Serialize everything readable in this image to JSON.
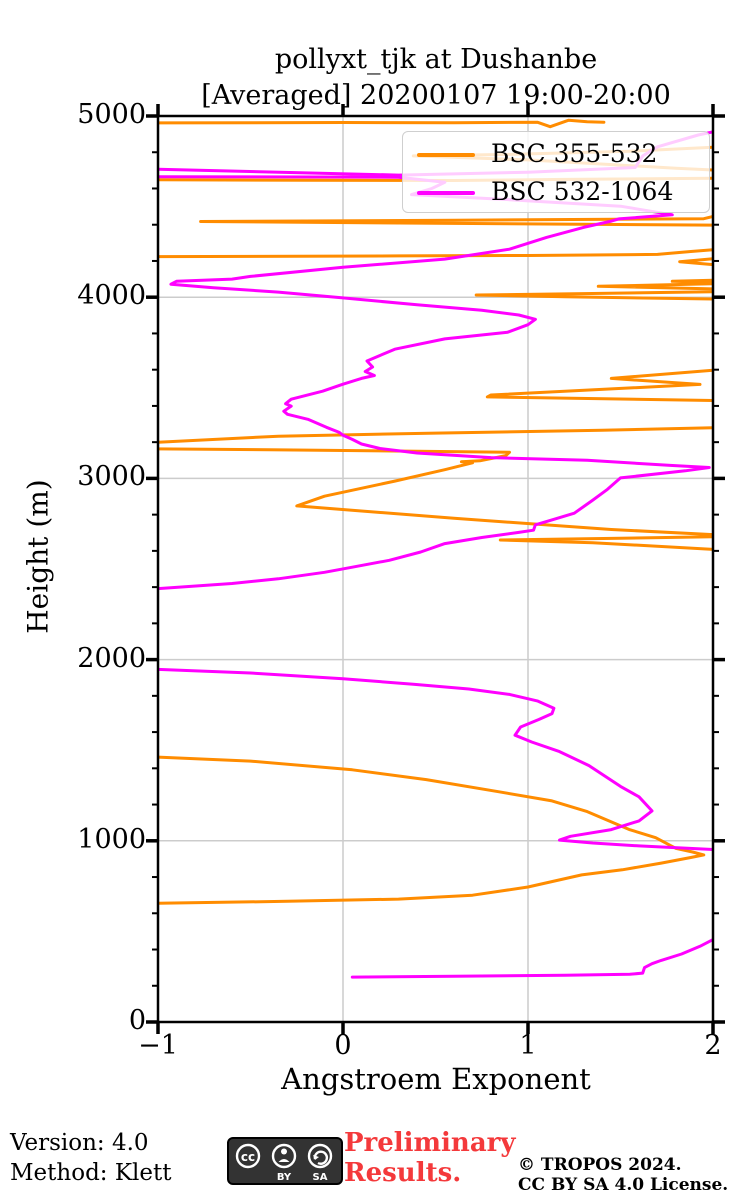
{
  "title": {
    "line1": "pollyxt_tjk at Dushanbe",
    "line2": "[Averaged] 20200107 19:00-20:00"
  },
  "footer": {
    "version": "Version: 4.0",
    "method": "Method: Klett",
    "preliminary_line1": "Preliminary",
    "preliminary_line2": "Results.",
    "preliminary_color": "#f4393b",
    "copyright_line1": "© TROPOS 2024.",
    "copyright_line2": "CC BY SA 4.0 License.",
    "cc_badge": {
      "icons": [
        "cc-icon",
        "by-person-icon",
        "sa-arrow-icon"
      ],
      "labels": [
        "BY",
        "SA"
      ]
    }
  },
  "chart_data": {
    "type": "line",
    "title": "pollyxt_tjk at Dushanbe [Averaged] 20200107 19:00-20:00",
    "xlabel": "Angstroem Exponent",
    "ylabel": "Height (m)",
    "xlim": [
      -1,
      2
    ],
    "ylim": [
      0,
      5000
    ],
    "xticks": [
      -1,
      0,
      1,
      2
    ],
    "yticks": [
      0,
      1000,
      2000,
      3000,
      4000,
      5000
    ],
    "y_minor_step": 200,
    "grid": true,
    "grid_color": "#cccccc",
    "legend_position": "upper right",
    "series": [
      {
        "name": "BSC 355-532",
        "color": "#FF8C00",
        "segments": [
          [
            [
              -1,
              655
            ],
            [
              -0.3,
              666
            ],
            [
              0.3,
              678
            ],
            [
              0.7,
              700
            ],
            [
              1.0,
              745
            ],
            [
              1.29,
              812
            ],
            [
              1.51,
              840
            ],
            [
              1.72,
              877
            ],
            [
              1.88,
              908
            ],
            [
              1.95,
              922
            ],
            [
              1.89,
              938
            ],
            [
              1.8,
              958
            ],
            [
              1.69,
              1017
            ],
            [
              1.55,
              1061
            ],
            [
              1.32,
              1161
            ],
            [
              1.13,
              1220
            ],
            [
              0.84,
              1271
            ],
            [
              0.45,
              1338
            ],
            [
              0.05,
              1392
            ],
            [
              -0.5,
              1440
            ],
            [
              -1,
              1462
            ]
          ],
          [
            [
              2,
              2608
            ],
            [
              1.35,
              2645
            ],
            [
              0.85,
              2660
            ],
            [
              1.5,
              2670
            ],
            [
              2,
              2678
            ]
          ],
          [
            [
              2,
              2690
            ],
            [
              1.45,
              2718
            ],
            [
              0.6,
              2780
            ],
            [
              -0.25,
              2848
            ],
            [
              -0.1,
              2902
            ],
            [
              0.28,
              2985
            ],
            [
              0.55,
              3048
            ],
            [
              0.7,
              3086
            ],
            [
              0.64,
              3092
            ],
            [
              0.74,
              3097
            ],
            [
              0.88,
              3126
            ],
            [
              0.9,
              3144
            ],
            [
              0.4,
              3150
            ],
            [
              -0.4,
              3158
            ],
            [
              -1,
              3163
            ]
          ],
          [
            [
              -1,
              3200
            ],
            [
              -0.35,
              3233
            ],
            [
              0.5,
              3250
            ],
            [
              1.4,
              3266
            ],
            [
              2,
              3279
            ]
          ],
          [
            [
              2,
              3430
            ],
            [
              0.78,
              3450
            ],
            [
              0.8,
              3460
            ],
            [
              1.93,
              3519
            ],
            [
              1.45,
              3552
            ],
            [
              2,
              3597
            ]
          ],
          [
            [
              2,
              3990
            ],
            [
              1.2,
              4002
            ],
            [
              0.72,
              4012
            ],
            [
              1.3,
              4020
            ],
            [
              2,
              4030
            ]
          ],
          [
            [
              2,
              4046
            ],
            [
              1.38,
              4060
            ],
            [
              2,
              4074
            ]
          ],
          [
            [
              2,
              4082
            ],
            [
              1.78,
              4088
            ],
            [
              2,
              4094
            ]
          ],
          [
            [
              -1,
              4224
            ],
            [
              0.3,
              4228
            ],
            [
              1.0,
              4230
            ],
            [
              1.7,
              4236
            ],
            [
              1.88,
              4252
            ],
            [
              2,
              4262
            ]
          ],
          [
            [
              2,
              4212
            ],
            [
              1.82,
              4196
            ],
            [
              2,
              4180
            ]
          ],
          [
            [
              2,
              4398
            ],
            [
              0.5,
              4408
            ],
            [
              -0.77,
              4418
            ],
            [
              0.6,
              4425
            ],
            [
              1.95,
              4433
            ],
            [
              2,
              4446
            ]
          ],
          [
            [
              2,
              4657
            ],
            [
              1.2,
              4650
            ],
            [
              0.6,
              4644
            ],
            [
              -0.2,
              4645
            ],
            [
              -1,
              4648
            ]
          ],
          [
            [
              2,
              4828
            ],
            [
              1.55,
              4806
            ],
            [
              0.9,
              4788
            ],
            [
              0.38,
              4780
            ],
            [
              1.0,
              4758
            ],
            [
              1.8,
              4712
            ],
            [
              2,
              4702
            ]
          ],
          [
            [
              -1,
              4962
            ],
            [
              0,
              4964
            ],
            [
              0.6,
              4963
            ],
            [
              1.05,
              4966
            ],
            [
              1.12,
              4941
            ],
            [
              1.22,
              4977
            ],
            [
              1.32,
              4968
            ],
            [
              1.41,
              4966
            ]
          ]
        ]
      },
      {
        "name": "BSC 532-1064",
        "color": "#FF00FF",
        "segments": [
          [
            [
              0.05,
              248
            ],
            [
              0.6,
              253
            ],
            [
              1.2,
              258
            ],
            [
              1.55,
              263
            ],
            [
              1.62,
              270
            ],
            [
              1.63,
              300
            ],
            [
              1.67,
              322
            ],
            [
              1.72,
              340
            ],
            [
              1.83,
              375
            ],
            [
              1.93,
              418
            ],
            [
              2,
              455
            ]
          ],
          [
            [
              2,
              952
            ],
            [
              1.6,
              972
            ],
            [
              1.35,
              988
            ],
            [
              1.17,
              1004
            ],
            [
              1.23,
              1025
            ],
            [
              1.45,
              1062
            ],
            [
              1.6,
              1110
            ],
            [
              1.67,
              1165
            ],
            [
              1.6,
              1243
            ],
            [
              1.5,
              1300
            ],
            [
              1.33,
              1415
            ],
            [
              1.17,
              1492
            ],
            [
              1.02,
              1545
            ],
            [
              0.93,
              1583
            ],
            [
              0.96,
              1628
            ],
            [
              1.06,
              1670
            ],
            [
              1.13,
              1702
            ],
            [
              1.14,
              1732
            ],
            [
              1.05,
              1772
            ],
            [
              0.9,
              1808
            ],
            [
              0.68,
              1838
            ],
            [
              0.38,
              1864
            ],
            [
              0,
              1894
            ],
            [
              -0.5,
              1926
            ],
            [
              -1,
              1946
            ]
          ],
          [
            [
              -1,
              2392
            ],
            [
              -0.6,
              2420
            ],
            [
              -0.35,
              2446
            ],
            [
              -0.1,
              2482
            ],
            [
              0.05,
              2510
            ],
            [
              0.25,
              2548
            ],
            [
              0.42,
              2594
            ],
            [
              0.55,
              2640
            ],
            [
              0.75,
              2674
            ],
            [
              0.95,
              2702
            ],
            [
              1.03,
              2714
            ],
            [
              1.04,
              2744
            ],
            [
              1.12,
              2768
            ],
            [
              1.25,
              2808
            ],
            [
              1.35,
              2880
            ],
            [
              1.43,
              2940
            ],
            [
              1.5,
              3003
            ],
            [
              1.85,
              3042
            ],
            [
              1.98,
              3060
            ],
            [
              1.77,
              3072
            ],
            [
              1.32,
              3100
            ],
            [
              0.8,
              3115
            ],
            [
              0.4,
              3140
            ],
            [
              0.2,
              3165
            ],
            [
              0.1,
              3190
            ],
            [
              0.05,
              3215
            ],
            [
              0,
              3238
            ],
            [
              -0.02,
              3254
            ],
            [
              -0.09,
              3282
            ],
            [
              -0.19,
              3326
            ],
            [
              -0.3,
              3354
            ],
            [
              -0.32,
              3371
            ],
            [
              -0.28,
              3399
            ],
            [
              -0.31,
              3412
            ],
            [
              -0.28,
              3437
            ],
            [
              -0.11,
              3481
            ],
            [
              0,
              3520
            ],
            [
              0.1,
              3552
            ],
            [
              0.17,
              3568
            ],
            [
              0.12,
              3590
            ],
            [
              0.16,
              3615
            ],
            [
              0.13,
              3648
            ],
            [
              0.28,
              3713
            ],
            [
              0.55,
              3770
            ],
            [
              0.89,
              3807
            ],
            [
              1.0,
              3848
            ],
            [
              1.04,
              3878
            ],
            [
              0.95,
              3902
            ],
            [
              0.75,
              3928
            ],
            [
              0.4,
              3958
            ],
            [
              0,
              3996
            ],
            [
              -0.35,
              4028
            ],
            [
              -0.7,
              4052
            ],
            [
              -0.93,
              4072
            ],
            [
              -0.9,
              4088
            ],
            [
              -0.6,
              4100
            ],
            [
              -0.5,
              4115
            ],
            [
              0,
              4165
            ],
            [
              0.55,
              4210
            ],
            [
              0.9,
              4265
            ],
            [
              1.1,
              4330
            ],
            [
              1.3,
              4385
            ],
            [
              1.45,
              4420
            ],
            [
              1.49,
              4432
            ],
            [
              1.78,
              4455
            ],
            [
              1.5,
              4502
            ],
            [
              0.9,
              4538
            ],
            [
              0.37,
              4566
            ],
            [
              0.48,
              4600
            ],
            [
              0.55,
              4634
            ],
            [
              0.3,
              4662
            ],
            [
              -1,
              4665
            ]
          ],
          [
            [
              -1,
              4706
            ],
            [
              0.3,
              4674
            ],
            [
              1.0,
              4690
            ],
            [
              1.58,
              4716
            ],
            [
              1.62,
              4780
            ],
            [
              1.7,
              4830
            ],
            [
              1.92,
              4895
            ],
            [
              2,
              4912
            ]
          ]
        ]
      }
    ]
  },
  "legend": {
    "entries": [
      {
        "label": "BSC 355-532",
        "color": "#FF8C00"
      },
      {
        "label": "BSC 532-1064",
        "color": "#FF00FF"
      }
    ]
  }
}
